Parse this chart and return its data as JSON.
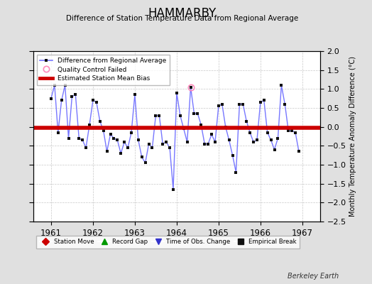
{
  "title": "HAMMARBY",
  "subtitle": "Difference of Station Temperature Data from Regional Average",
  "ylabel": "Monthly Temperature Anomaly Difference (°C)",
  "background_color": "#e0e0e0",
  "plot_bg_color": "#ffffff",
  "grid_color": "#c8c8c8",
  "bias_value": -0.02,
  "xlim": [
    1960.58,
    1967.42
  ],
  "ylim": [
    -2.5,
    2.0
  ],
  "yticks": [
    -2.5,
    -2.0,
    -1.5,
    -1.0,
    -0.5,
    0.0,
    0.5,
    1.0,
    1.5,
    2.0
  ],
  "xticks": [
    1961,
    1962,
    1963,
    1964,
    1965,
    1966,
    1967
  ],
  "line_color": "#7777ff",
  "marker_color": "#111111",
  "bias_color": "#cc0000",
  "qc_fail_index": 40,
  "values": [
    0.75,
    1.1,
    -0.15,
    0.7,
    1.1,
    -0.3,
    0.8,
    0.85,
    -0.3,
    -0.35,
    -0.55,
    0.05,
    0.7,
    0.65,
    0.15,
    -0.1,
    -0.65,
    -0.2,
    -0.3,
    -0.35,
    -0.7,
    -0.4,
    -0.55,
    -0.15,
    0.85,
    -0.35,
    -0.8,
    -0.95,
    -0.45,
    -0.55,
    0.3,
    0.3,
    -0.45,
    -0.4,
    -0.55,
    -1.65,
    0.9,
    0.3,
    -0.05,
    -0.4,
    1.05,
    0.35,
    0.35,
    0.05,
    -0.45,
    -0.45,
    -0.2,
    -0.4,
    0.55,
    0.6,
    0.0,
    -0.35,
    -0.75,
    -1.2,
    0.6,
    0.6,
    0.15,
    -0.15,
    -0.4,
    -0.35,
    0.65,
    0.7,
    -0.15,
    -0.35,
    -0.6,
    -0.3,
    1.1,
    0.6,
    -0.1,
    -0.1,
    -0.15,
    -0.65
  ],
  "footer_text": "Berkeley Earth",
  "bottom_legend": [
    {
      "label": "Station Move",
      "color": "#cc0000",
      "marker": "D"
    },
    {
      "label": "Record Gap",
      "color": "#009900",
      "marker": "^"
    },
    {
      "label": "Time of Obs. Change",
      "color": "#3333cc",
      "marker": "v"
    },
    {
      "label": "Empirical Break",
      "color": "#111111",
      "marker": "s"
    }
  ]
}
